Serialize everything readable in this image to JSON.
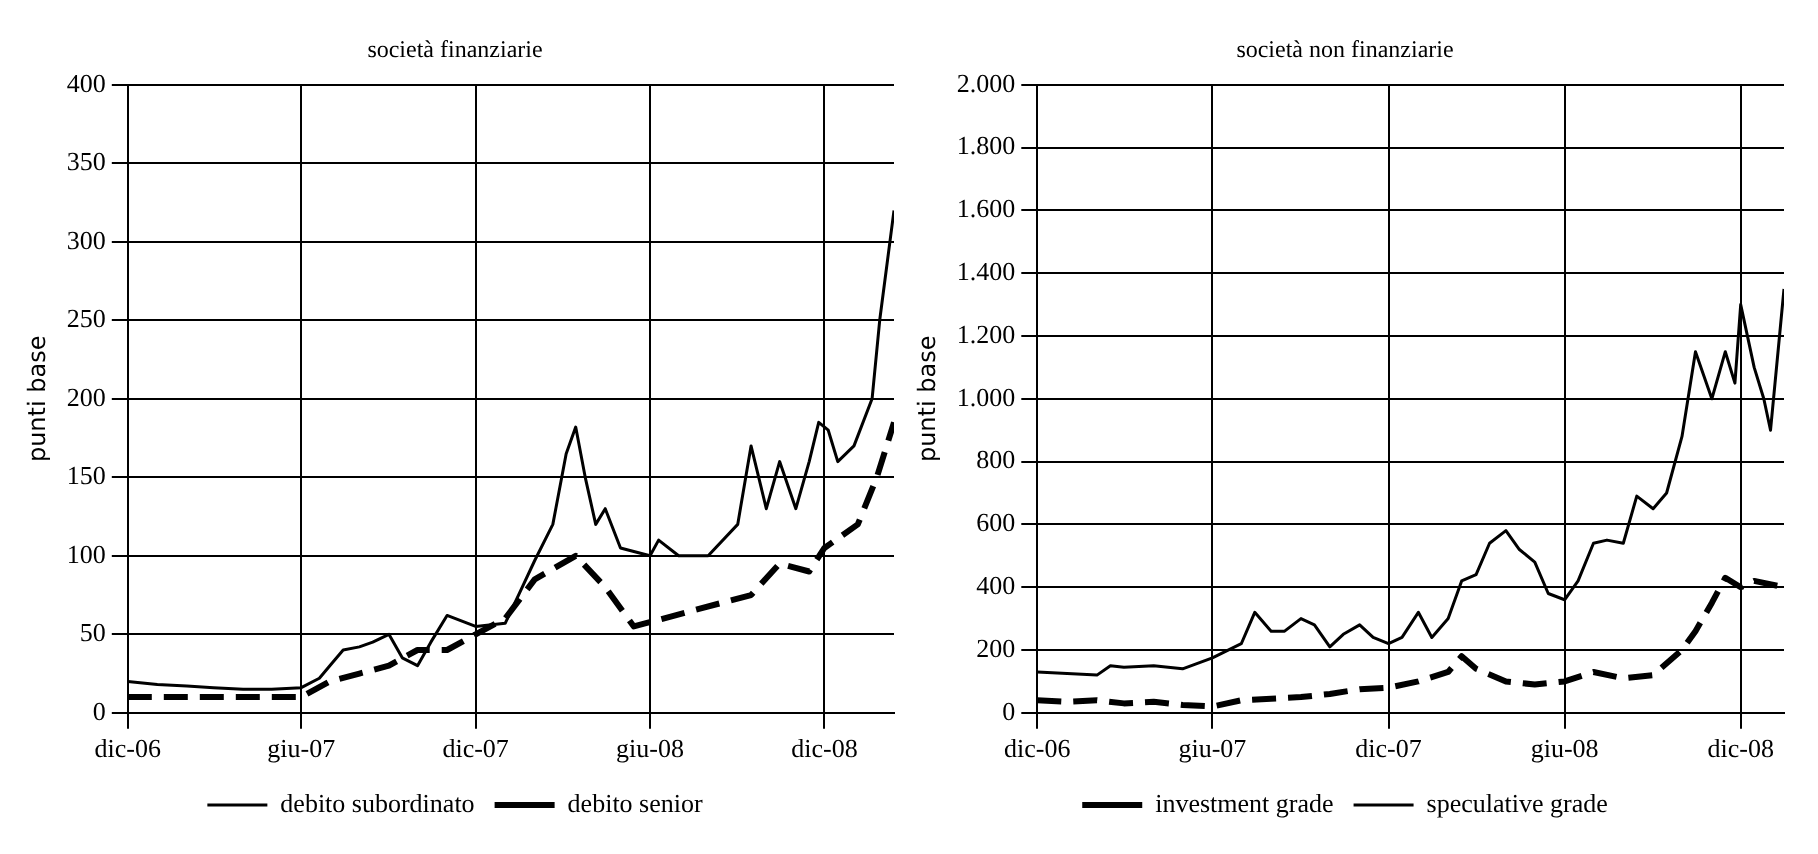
{
  "chart_data": [
    {
      "type": "line",
      "title": "società finanziarie",
      "ylabel": "punti base",
      "xlim": [
        "2006-12-01",
        "2009-02-12"
      ],
      "xticks": [
        {
          "value": "2006-12-01",
          "label": "dic-06"
        },
        {
          "value": "2007-06-01",
          "label": "giu-07"
        },
        {
          "value": "2007-12-01",
          "label": "dic-07"
        },
        {
          "value": "2008-06-01",
          "label": "giu-08"
        },
        {
          "value": "2008-12-01",
          "label": "dic-08"
        }
      ],
      "ylim": [
        0,
        400
      ],
      "yticks": [
        0,
        50,
        100,
        150,
        200,
        250,
        300,
        350,
        400
      ],
      "grid": true,
      "legend": "bottom",
      "series": [
        {
          "name": "debito subordinato",
          "color": "#000000",
          "line_style": "solid",
          "x": [
            "2006-12-01",
            "2007-01-01",
            "2007-02-01",
            "2007-03-01",
            "2007-04-01",
            "2007-05-01",
            "2007-06-01",
            "2007-06-20",
            "2007-07-01",
            "2007-07-15",
            "2007-08-01",
            "2007-08-15",
            "2007-09-01",
            "2007-09-15",
            "2007-10-01",
            "2007-10-15",
            "2007-11-01",
            "2007-12-01",
            "2008-01-01",
            "2008-01-15",
            "2008-02-01",
            "2008-02-20",
            "2008-03-05",
            "2008-03-15",
            "2008-03-25",
            "2008-04-05",
            "2008-04-15",
            "2008-05-01",
            "2008-06-01",
            "2008-06-10",
            "2008-07-01",
            "2008-08-01",
            "2008-09-01",
            "2008-09-15",
            "2008-10-01",
            "2008-10-15",
            "2008-11-01",
            "2008-11-15",
            "2008-11-25",
            "2008-12-05",
            "2008-12-15",
            "2009-01-01",
            "2009-01-20",
            "2009-01-28",
            "2009-02-12"
          ],
          "values": [
            20,
            18,
            17,
            16,
            15,
            15,
            16,
            22,
            30,
            40,
            42,
            45,
            50,
            35,
            30,
            45,
            62,
            55,
            57,
            75,
            97,
            120,
            165,
            182,
            150,
            120,
            130,
            105,
            100,
            110,
            100,
            100,
            120,
            170,
            130,
            160,
            130,
            160,
            185,
            180,
            160,
            170,
            200,
            250,
            320
          ]
        },
        {
          "name": "debito senior",
          "color": "#000000",
          "line_style": "dashed",
          "x": [
            "2006-12-01",
            "2007-02-01",
            "2007-04-01",
            "2007-06-01",
            "2007-07-01",
            "2007-08-01",
            "2007-09-01",
            "2007-10-01",
            "2007-11-01",
            "2007-12-01",
            "2008-01-01",
            "2008-02-01",
            "2008-03-15",
            "2008-04-15",
            "2008-05-15",
            "2008-06-15",
            "2008-07-15",
            "2008-08-15",
            "2008-09-15",
            "2008-10-15",
            "2008-11-15",
            "2008-12-01",
            "2009-01-05",
            "2009-01-25",
            "2009-02-12"
          ],
          "values": [
            10,
            10,
            10,
            10,
            20,
            25,
            30,
            40,
            40,
            50,
            60,
            85,
            100,
            80,
            55,
            60,
            65,
            70,
            75,
            95,
            90,
            105,
            120,
            150,
            185
          ]
        }
      ]
    },
    {
      "type": "line",
      "title": "società non finanziarie",
      "ylabel": "punti base",
      "xlim": [
        "2006-12-01",
        "2009-01-15"
      ],
      "xticks": [
        {
          "value": "2006-12-01",
          "label": "dic-06"
        },
        {
          "value": "2007-06-01",
          "label": "giu-07"
        },
        {
          "value": "2007-12-01",
          "label": "dic-07"
        },
        {
          "value": "2008-06-01",
          "label": "giu-08"
        },
        {
          "value": "2008-12-01",
          "label": "dic-08"
        }
      ],
      "ylim": [
        0,
        2000
      ],
      "yticks": [
        0,
        200,
        400,
        600,
        800,
        {
          "value": 1000,
          "label": "1.000"
        },
        {
          "value": 1200,
          "label": "1.200"
        },
        {
          "value": 1400,
          "label": "1.400"
        },
        {
          "value": 1600,
          "label": "1.600"
        },
        {
          "value": 1800,
          "label": "1.800"
        },
        {
          "value": 2000,
          "label": "2.000"
        }
      ],
      "grid": true,
      "legend": "bottom",
      "series": [
        {
          "name": "investment grade",
          "color": "#000000",
          "line_style": "dashed",
          "x": [
            "2006-12-01",
            "2007-01-01",
            "2007-02-01",
            "2007-03-01",
            "2007-04-01",
            "2007-05-01",
            "2007-06-01",
            "2007-07-01",
            "2007-08-01",
            "2007-09-01",
            "2007-10-01",
            "2007-11-01",
            "2007-12-01",
            "2008-01-01",
            "2008-02-01",
            "2008-02-15",
            "2008-03-01",
            "2008-04-01",
            "2008-05-01",
            "2008-06-01",
            "2008-07-01",
            "2008-08-01",
            "2008-09-01",
            "2008-10-01",
            "2008-10-15",
            "2008-11-01",
            "2008-11-15",
            "2008-12-01",
            "2008-12-15",
            "2009-01-15"
          ],
          "values": [
            40,
            35,
            40,
            30,
            35,
            25,
            20,
            40,
            45,
            50,
            60,
            75,
            80,
            100,
            130,
            180,
            140,
            100,
            90,
            100,
            130,
            110,
            120,
            200,
            260,
            350,
            430,
            400,
            420,
            400
          ]
        },
        {
          "name": "speculative grade",
          "color": "#000000",
          "line_style": "solid",
          "x": [
            "2006-12-01",
            "2007-01-01",
            "2007-02-01",
            "2007-02-15",
            "2007-03-01",
            "2007-04-01",
            "2007-05-01",
            "2007-06-01",
            "2007-07-01",
            "2007-07-15",
            "2007-08-01",
            "2007-08-15",
            "2007-09-01",
            "2007-09-15",
            "2007-10-01",
            "2007-10-15",
            "2007-11-01",
            "2007-11-15",
            "2007-12-01",
            "2007-12-15",
            "2008-01-01",
            "2008-01-15",
            "2008-02-01",
            "2008-02-15",
            "2008-03-01",
            "2008-03-15",
            "2008-04-01",
            "2008-04-15",
            "2008-05-01",
            "2008-05-15",
            "2008-06-01",
            "2008-06-15",
            "2008-07-01",
            "2008-07-15",
            "2008-08-01",
            "2008-08-15",
            "2008-09-01",
            "2008-09-15",
            "2008-10-01",
            "2008-10-15",
            "2008-11-01",
            "2008-11-15",
            "2008-11-25",
            "2008-12-01",
            "2008-12-15",
            "2008-12-25",
            "2009-01-01",
            "2009-01-15"
          ],
          "values": [
            130,
            125,
            120,
            150,
            145,
            150,
            140,
            175,
            220,
            320,
            260,
            260,
            300,
            280,
            210,
            250,
            280,
            240,
            220,
            240,
            320,
            240,
            300,
            420,
            440,
            540,
            580,
            520,
            480,
            380,
            360,
            420,
            540,
            550,
            540,
            690,
            650,
            700,
            880,
            1150,
            1000,
            1150,
            1050,
            1300,
            1100,
            1000,
            900,
            1350
          ]
        }
      ]
    }
  ]
}
